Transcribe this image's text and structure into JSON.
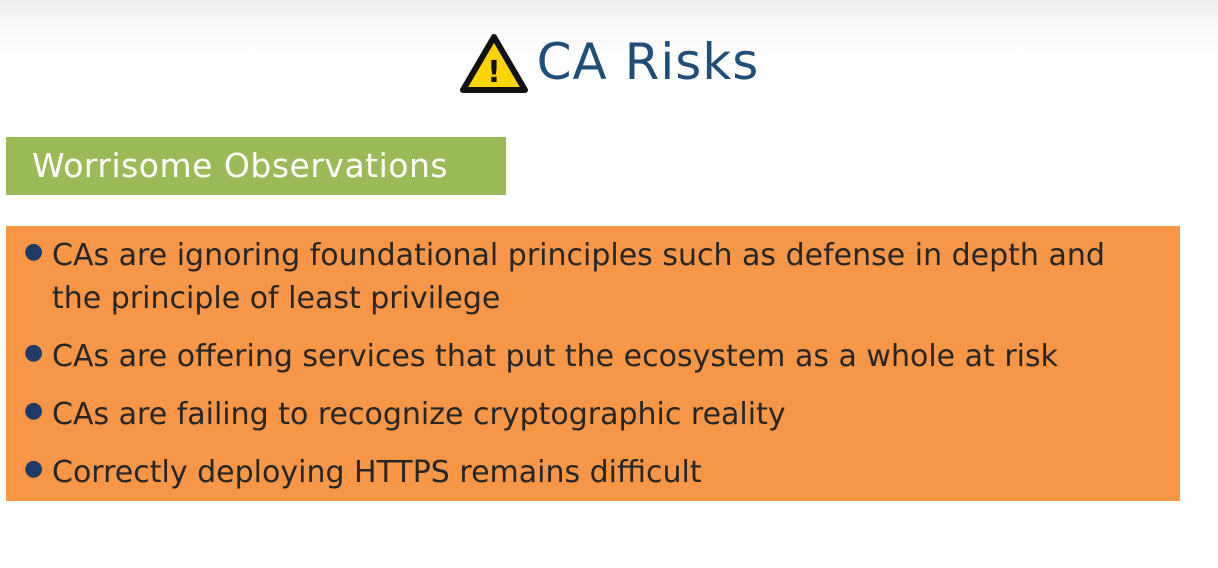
{
  "header": {
    "title": "CA Risks",
    "icon": "warning-triangle-icon",
    "icon_glyph": "!",
    "icon_color": "#FFD400"
  },
  "section": {
    "label": "Worrisome Observations",
    "label_color": "#9BBB59"
  },
  "bullets": {
    "box_color": "#F79646",
    "items": [
      {
        "text": "CAs are ignoring foundational principles such as defense in depth and the principle of least privilege"
      },
      {
        "text": "CAs are offering services that put the ecosystem as a whole at risk"
      },
      {
        "text": "CAs are failing to recognize cryptographic reality"
      },
      {
        "text": "Correctly deploying HTTPS remains difficult"
      }
    ]
  }
}
